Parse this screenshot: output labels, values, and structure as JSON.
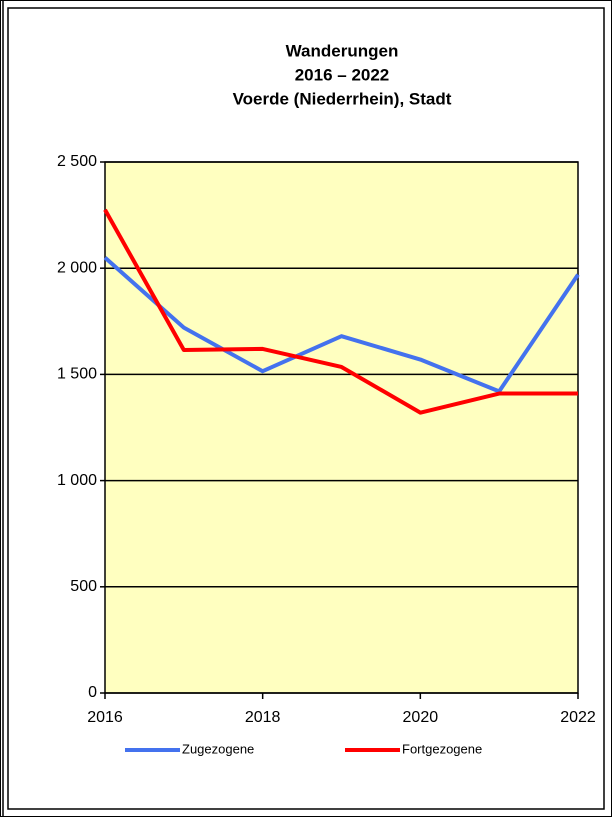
{
  "chart_data": {
    "type": "line",
    "title": [
      "Wanderungen",
      "2016 – 2022",
      "Voerde (Niederrhein), Stadt"
    ],
    "x": [
      2016,
      2017,
      2018,
      2019,
      2020,
      2021,
      2022
    ],
    "xlim": [
      2016,
      2022
    ],
    "xticks": [
      2016,
      2018,
      2020,
      2022
    ],
    "ylim": [
      0,
      2500
    ],
    "yticks": [
      0,
      500,
      {
        "value": 1000,
        "label": "1 000"
      },
      {
        "value": 1500,
        "label": "1 500"
      },
      {
        "value": 2000,
        "label": "2 000"
      },
      {
        "value": 2500,
        "label": "2 500"
      }
    ],
    "grid": true,
    "background": "#ffffc0",
    "series": [
      {
        "name": "Zugezogene",
        "color": "#4472ee",
        "values": [
          2050,
          1720,
          1515,
          1680,
          1570,
          1420,
          1970
        ]
      },
      {
        "name": "Fortgezogene",
        "color": "#ff0000",
        "values": [
          2275,
          1615,
          1620,
          1535,
          1320,
          1410,
          1410
        ]
      }
    ]
  }
}
